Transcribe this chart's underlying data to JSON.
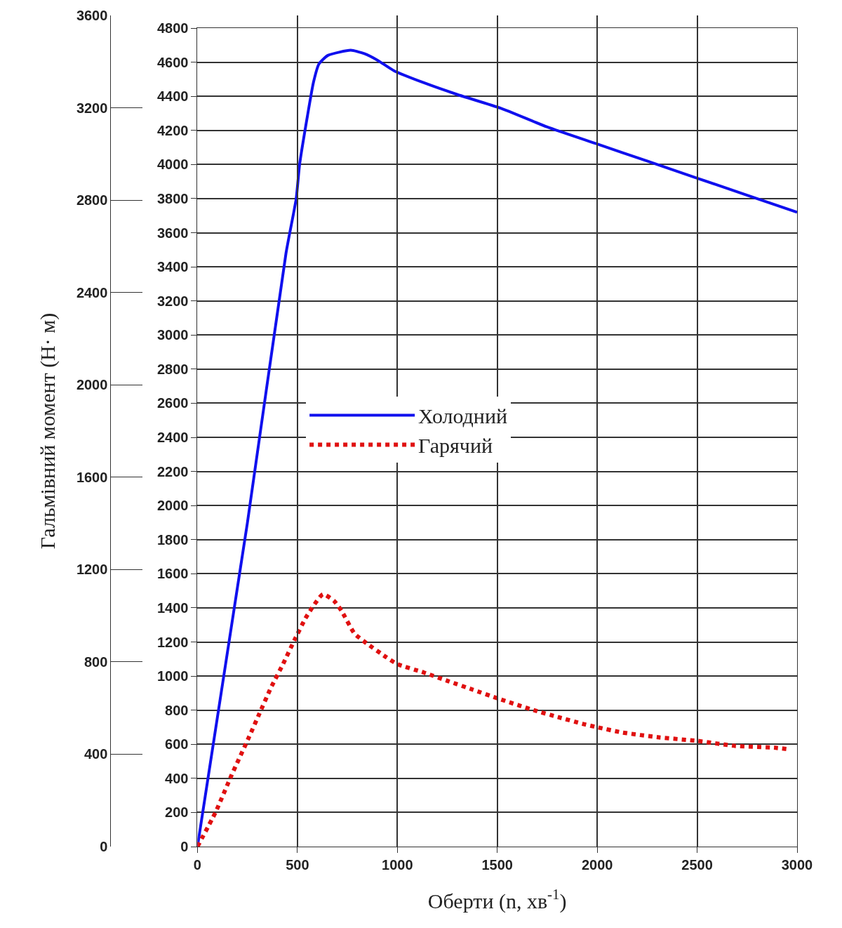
{
  "chart_data": {
    "type": "line",
    "xlabel": "Оберти (n, хв$^{-1}$)",
    "y2label": "Гальмівний момент (Н· м)",
    "xlim": [
      0,
      3000
    ],
    "xticks": [
      0,
      500,
      1000,
      1500,
      2000,
      2500,
      3000
    ],
    "ylim": [
      0,
      4800
    ],
    "yticks": [
      0,
      200,
      400,
      600,
      800,
      1000,
      1200,
      1400,
      1600,
      1800,
      2000,
      2200,
      2400,
      2600,
      2800,
      3000,
      3200,
      3400,
      3600,
      3800,
      4000,
      4200,
      4400,
      4600,
      4800
    ],
    "y2lim": [
      0,
      3600
    ],
    "y2ticks": [
      0,
      400,
      800,
      1200,
      1600,
      2000,
      2400,
      2800,
      3200,
      3600
    ],
    "grid": true,
    "legend": "center",
    "marker": "none",
    "series": [
      {
        "name": "Холодний",
        "color": "#1010ee",
        "line_style": "solid",
        "x": [
          0,
          250,
          443,
          494,
          511,
          551,
          580,
          608,
          653,
          767,
          835,
          903,
          983,
          1131,
          1301,
          1517,
          1750,
          2000,
          2250,
          2500,
          2750,
          3000
        ],
        "values": [
          0,
          1900,
          3480,
          3800,
          4000,
          4290,
          4480,
          4590,
          4640,
          4670,
          4650,
          4610,
          4550,
          4480,
          4410,
          4330,
          4220,
          4120,
          4020,
          3920,
          3820,
          3720
        ]
      },
      {
        "name": "Гарячий",
        "color": "#e01010",
        "line_style": "dotted",
        "x": [
          0,
          90,
          171,
          257,
          310,
          367,
          428,
          485,
          546,
          628,
          684,
          722,
          785,
          837,
          945,
          1000,
          1134,
          1255,
          1378,
          1500,
          1682,
          1802,
          1926,
          2000,
          2120,
          2311,
          2500,
          2692,
          2885,
          2962
        ],
        "values": [
          0,
          200,
          420,
          640,
          780,
          930,
          1070,
          1210,
          1350,
          1480,
          1440,
          1380,
          1250,
          1200,
          1110,
          1070,
          1020,
          970,
          920,
          870,
          800,
          760,
          720,
          700,
          670,
          640,
          620,
          590,
          580,
          570
        ]
      }
    ]
  }
}
